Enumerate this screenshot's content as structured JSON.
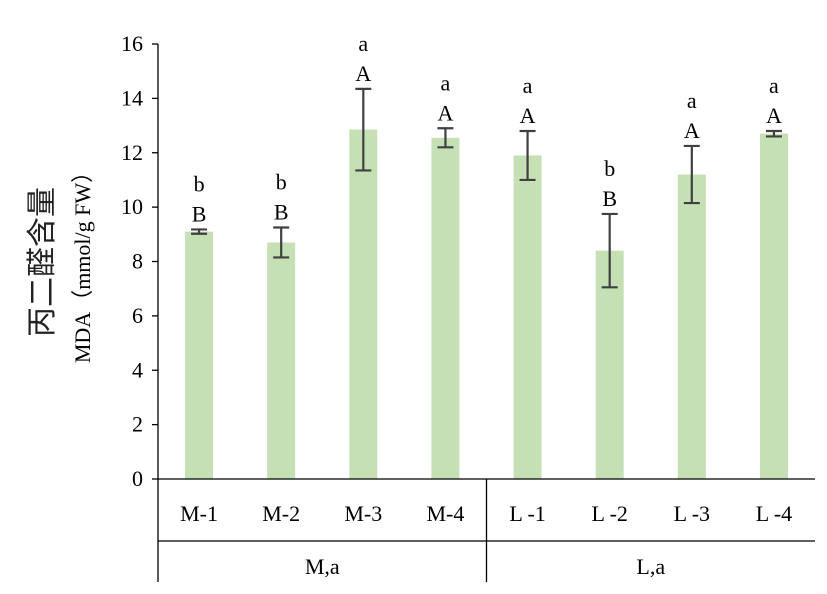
{
  "chart_data": {
    "type": "bar",
    "ylabel_cn": "丙二醛含量",
    "ylabel": "MDA（mmol/g FW）",
    "xlabel": "",
    "ylim": [
      0,
      16
    ],
    "yticks": [
      "0",
      "2",
      "4",
      "6",
      "8",
      "10",
      "12",
      "14",
      "16"
    ],
    "grid": false,
    "bar_color": "#c5e0b4",
    "errorbar_color": "#404040",
    "categories": [
      "M-1",
      "M-2",
      "M-3",
      "M-4",
      "L -1",
      "L -2",
      "L -3",
      "L -4"
    ],
    "values": [
      9.1,
      8.7,
      12.85,
      12.55,
      11.9,
      8.4,
      11.2,
      12.7
    ],
    "errors": [
      0.08,
      0.55,
      1.5,
      0.35,
      0.9,
      1.35,
      1.05,
      0.1
    ],
    "sig_lower": [
      "b",
      "b",
      "a",
      "a",
      "a",
      "b",
      "a",
      "a"
    ],
    "sig_upper": [
      "B",
      "B",
      "A",
      "A",
      "A",
      "B",
      "A",
      "A"
    ],
    "groups": [
      {
        "label": "M,a",
        "start": 0,
        "end": 3
      },
      {
        "label": "L,a",
        "start": 4,
        "end": 7
      }
    ]
  }
}
